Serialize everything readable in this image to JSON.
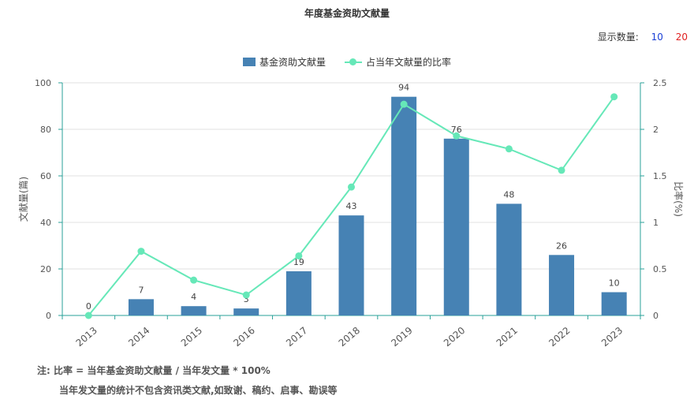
{
  "title": "年度基金资助文献量",
  "display_count": {
    "label": "显示数量:",
    "options": [
      "10",
      "20"
    ]
  },
  "legend": {
    "bar": "基金资助文献量",
    "line": "占当年文献量的比率"
  },
  "notes": [
    "注:  比率 = 当年基金资助文献量 / 当年发文量 * 100%",
    "当年发文量的统计不包含资讯类文献,如致谢、稿约、启事、勘误等"
  ],
  "colors": {
    "bar": "#4682b4",
    "line": "#66e8b8",
    "axis": "#2aa198",
    "grid": "#e0e0e0"
  },
  "chart_data": {
    "type": "bar",
    "title": "年度基金资助文献量",
    "categories": [
      "2013",
      "2014",
      "2015",
      "2016",
      "2017",
      "2018",
      "2019",
      "2020",
      "2021",
      "2022",
      "2023"
    ],
    "series": [
      {
        "name": "基金资助文献量",
        "type": "bar",
        "axis": "left",
        "values": [
          0,
          7,
          4,
          3,
          19,
          43,
          94,
          76,
          48,
          26,
          10
        ]
      },
      {
        "name": "占当年文献量的比率",
        "type": "line",
        "axis": "right",
        "values": [
          0,
          0.69,
          0.38,
          0.22,
          0.64,
          1.38,
          2.27,
          1.93,
          1.79,
          1.56,
          2.35
        ]
      }
    ],
    "ylabel": "文献量(篇)",
    "ylabel_right": "比率(%)",
    "ylim": [
      0,
      100
    ],
    "ylim_right": [
      0,
      2.5
    ],
    "yticks": [
      "0",
      "20",
      "40",
      "60",
      "80",
      "100"
    ],
    "yticks_right": [
      "0",
      "0.5",
      "1",
      "1.5",
      "2",
      "2.5"
    ],
    "grid": true,
    "legend_position": "top-center"
  }
}
